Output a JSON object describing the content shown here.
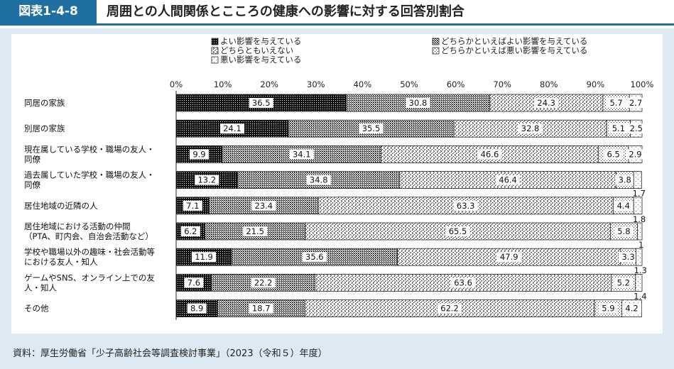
{
  "header": {
    "figure_number": "図表1-4-8",
    "title": "周囲との人間関係とこころの健康への影響に対する回答別割合",
    "accent_color": "#1f6fa3",
    "panel_color": "#dde9f3"
  },
  "source": "資料：厚生労働省「少子高齢社会等調査検討事業」（2023（令和５）年度）",
  "chart_data": {
    "type": "bar",
    "orientation": "horizontal",
    "stacked": true,
    "title": "",
    "xlabel": "",
    "ylabel": "",
    "xlim": [
      0,
      100
    ],
    "x_tick_labels": [
      "0%",
      "10%",
      "20%",
      "30%",
      "40%",
      "50%",
      "60%",
      "70%",
      "80%",
      "90%",
      "100%"
    ],
    "grid": false,
    "legend_position": "top",
    "categories": [
      [
        "同居の家族"
      ],
      [
        "別居の家族"
      ],
      [
        "現在属している学校・職場の友人・",
        "同僚"
      ],
      [
        "過去属していた学校・職場の友人・",
        "同僚"
      ],
      [
        "居住地域の近隣の人"
      ],
      [
        "居住地域における活動の仲間",
        "（PTA、町内会、自治会活動など）"
      ],
      [
        "学校や職場以外の趣味・社会活動等",
        "における友人・知人"
      ],
      [
        "ゲームやSNS、オンライン上での友",
        "人・知人"
      ],
      [
        "その他"
      ]
    ],
    "series": [
      {
        "name": "よい影響を与えている",
        "pattern": "dense",
        "values": [
          36.5,
          24.1,
          9.9,
          13.2,
          7.1,
          6.2,
          11.9,
          7.6,
          8.9
        ]
      },
      {
        "name": "どちらかといえばよい影響を与えている",
        "pattern": "medium",
        "values": [
          30.8,
          35.5,
          34.1,
          34.8,
          23.4,
          21.5,
          35.6,
          22.2,
          18.7
        ]
      },
      {
        "name": "どちらともいえない",
        "pattern": "light",
        "values": [
          24.3,
          32.8,
          46.6,
          46.4,
          63.3,
          65.5,
          47.9,
          63.6,
          62.2
        ]
      },
      {
        "name": "どちらかといえば悪い影響を与えている",
        "pattern": "dots",
        "values": [
          5.7,
          5.1,
          6.5,
          3.8,
          4.4,
          5.8,
          3.3,
          5.2,
          5.9
        ]
      },
      {
        "name": "悪い影響を与えている",
        "pattern": "white",
        "values": [
          2.7,
          2.5,
          2.9,
          1.7,
          1.8,
          1.0,
          1.3,
          1.4,
          4.2
        ]
      }
    ],
    "value_labels": [
      [
        "36.5",
        "30.8",
        "24.3",
        "5.7",
        "2.7"
      ],
      [
        "24.1",
        "35.5",
        "32.8",
        "5.1",
        "2.5"
      ],
      [
        "9.9",
        "34.1",
        "46.6",
        "6.5",
        "2.9"
      ],
      [
        "13.2",
        "34.8",
        "46.4",
        "3.8",
        "1.7"
      ],
      [
        "7.1",
        "23.4",
        "63.3",
        "4.4",
        "1.8"
      ],
      [
        "6.2",
        "21.5",
        "65.5",
        "5.8",
        "1"
      ],
      [
        "11.9",
        "35.6",
        "47.9",
        "3.3",
        "1.3"
      ],
      [
        "7.6",
        "22.2",
        "63.6",
        "5.2",
        "1.4"
      ],
      [
        "8.9",
        "18.7",
        "62.2",
        "5.9",
        "4.2"
      ]
    ],
    "legend_order": [
      0,
      2,
      4,
      1,
      3
    ]
  }
}
